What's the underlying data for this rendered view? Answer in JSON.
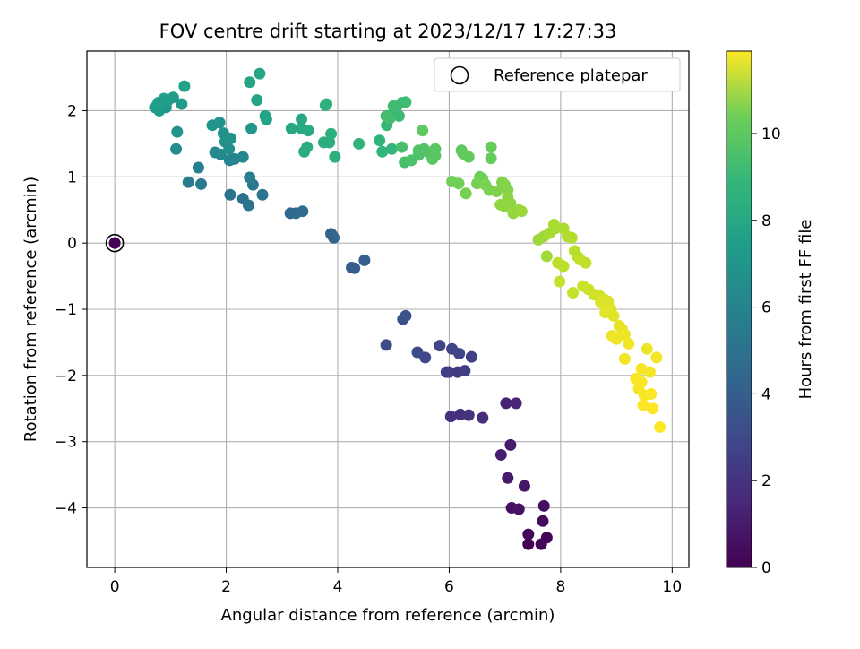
{
  "chart_data": {
    "type": "scatter",
    "title": "FOV centre drift starting at 2023/12/17 17:27:33",
    "xlabel": "Angular distance from reference (arcmin)",
    "ylabel": "Rotation from reference (arcmin)",
    "xlim": [
      -0.5,
      10.3
    ],
    "ylim": [
      -4.9,
      2.9
    ],
    "xticks": [
      0,
      2,
      4,
      6,
      8,
      10
    ],
    "xtick_labels": [
      "0",
      "2",
      "4",
      "6",
      "8",
      "10"
    ],
    "yticks": [
      -4,
      -3,
      -2,
      -1,
      0,
      1,
      2
    ],
    "ytick_labels": [
      "−4",
      "−3",
      "−2",
      "−1",
      "0",
      "1",
      "2"
    ],
    "grid": true,
    "legend": {
      "position": "top-right",
      "entries": [
        "Reference platepar"
      ]
    },
    "reference_point": {
      "x": 0,
      "y": 0
    },
    "colorbar": {
      "label": "Hours from first FF file",
      "range": [
        0,
        11.9
      ],
      "ticks": [
        0,
        2,
        4,
        6,
        8,
        10
      ],
      "tick_labels": [
        "0",
        "2",
        "4",
        "6",
        "8",
        "10"
      ],
      "colormap": "viridis"
    },
    "points": [
      [
        7.42,
        -4.55,
        0.05
      ],
      [
        7.65,
        -4.55,
        0.1
      ],
      [
        7.75,
        -4.45,
        0.15
      ],
      [
        7.42,
        -4.4,
        0.2
      ],
      [
        7.68,
        -4.2,
        0.3
      ],
      [
        7.7,
        -3.97,
        0.4
      ],
      [
        7.12,
        -4.0,
        0.5
      ],
      [
        7.25,
        -4.02,
        0.6
      ],
      [
        7.35,
        -3.67,
        0.7
      ],
      [
        7.05,
        -3.55,
        0.8
      ],
      [
        7.1,
        -3.05,
        0.9
      ],
      [
        6.93,
        -3.2,
        1.0
      ],
      [
        7.02,
        -2.42,
        1.2
      ],
      [
        7.2,
        -2.42,
        1.3
      ],
      [
        6.6,
        -2.64,
        1.5
      ],
      [
        6.2,
        -2.59,
        1.6
      ],
      [
        6.03,
        -2.62,
        1.7
      ],
      [
        6.35,
        -2.6,
        1.8
      ],
      [
        6.0,
        -1.95,
        2.0
      ],
      [
        6.15,
        -1.95,
        2.1
      ],
      [
        6.28,
        -1.93,
        2.2
      ],
      [
        5.95,
        -1.95,
        2.2
      ],
      [
        6.4,
        -1.72,
        2.3
      ],
      [
        6.05,
        -1.6,
        2.4
      ],
      [
        5.83,
        -1.55,
        2.5
      ],
      [
        6.18,
        -1.67,
        2.5
      ],
      [
        5.57,
        -1.73,
        2.6
      ],
      [
        5.43,
        -1.65,
        2.7
      ],
      [
        4.87,
        -1.54,
        2.8
      ],
      [
        5.17,
        -1.15,
        3.0
      ],
      [
        5.22,
        -1.1,
        3.0
      ],
      [
        4.25,
        -0.37,
        3.4
      ],
      [
        4.3,
        -0.38,
        3.5
      ],
      [
        4.48,
        -0.26,
        3.6
      ],
      [
        3.88,
        0.14,
        3.8
      ],
      [
        3.93,
        0.08,
        3.9
      ],
      [
        3.9,
        0.12,
        3.9
      ],
      [
        3.15,
        0.45,
        4.0
      ],
      [
        3.25,
        0.45,
        4.1
      ],
      [
        3.37,
        0.48,
        4.2
      ],
      [
        2.3,
        0.67,
        4.4
      ],
      [
        2.4,
        0.57,
        4.5
      ],
      [
        2.07,
        0.73,
        4.6
      ],
      [
        2.65,
        0.73,
        4.7
      ],
      [
        2.48,
        0.88,
        4.8
      ],
      [
        1.55,
        0.89,
        4.9
      ],
      [
        1.32,
        0.92,
        5.0
      ],
      [
        2.42,
        0.99,
        5.1
      ],
      [
        1.5,
        1.14,
        5.2
      ],
      [
        2.15,
        1.27,
        5.3
      ],
      [
        2.06,
        1.25,
        5.4
      ],
      [
        2.3,
        1.3,
        5.5
      ],
      [
        1.9,
        1.34,
        5.6
      ],
      [
        1.8,
        1.37,
        5.7
      ],
      [
        1.1,
        1.42,
        5.8
      ],
      [
        2.05,
        1.42,
        5.9
      ],
      [
        1.98,
        1.53,
        6.0
      ],
      [
        2.08,
        1.58,
        6.0
      ],
      [
        1.95,
        1.66,
        6.1
      ],
      [
        1.12,
        1.68,
        6.1
      ],
      [
        1.75,
        1.78,
        6.2
      ],
      [
        1.88,
        1.82,
        6.2
      ],
      [
        2.45,
        1.73,
        6.3
      ],
      [
        0.92,
        2.05,
        6.3
      ],
      [
        1.2,
        2.1,
        6.4
      ],
      [
        0.8,
        2.0,
        6.4
      ],
      [
        0.72,
        2.05,
        6.5
      ],
      [
        0.82,
        2.12,
        6.5
      ],
      [
        0.95,
        2.15,
        6.6
      ],
      [
        1.05,
        2.2,
        6.6
      ],
      [
        0.88,
        2.18,
        6.7
      ],
      [
        0.78,
        2.12,
        6.7
      ],
      [
        1.25,
        2.37,
        6.8
      ],
      [
        2.7,
        1.92,
        6.8
      ],
      [
        2.72,
        1.87,
        6.9
      ],
      [
        2.55,
        2.16,
        6.9
      ],
      [
        2.42,
        2.43,
        7.0
      ],
      [
        2.6,
        2.56,
        7.0
      ],
      [
        3.17,
        1.73,
        7.1
      ],
      [
        3.35,
        1.87,
        7.1
      ],
      [
        3.35,
        1.73,
        7.2
      ],
      [
        3.47,
        1.7,
        7.2
      ],
      [
        3.4,
        1.38,
        7.3
      ],
      [
        3.45,
        1.45,
        7.3
      ],
      [
        3.75,
        1.52,
        7.4
      ],
      [
        3.85,
        1.52,
        7.4
      ],
      [
        3.88,
        1.65,
        7.5
      ],
      [
        3.95,
        1.3,
        7.5
      ],
      [
        3.78,
        2.08,
        7.6
      ],
      [
        3.8,
        2.1,
        7.6
      ],
      [
        4.38,
        1.5,
        7.7
      ],
      [
        4.75,
        1.55,
        7.7
      ],
      [
        4.8,
        1.38,
        7.8
      ],
      [
        4.97,
        1.42,
        7.8
      ],
      [
        4.88,
        1.78,
        7.9
      ],
      [
        4.92,
        1.92,
        7.9
      ],
      [
        5.0,
        1.97,
        8.0
      ],
      [
        5.05,
        2.05,
        8.0
      ],
      [
        5.1,
        1.92,
        8.1
      ],
      [
        5.15,
        2.12,
        8.1
      ],
      [
        5.0,
        2.07,
        8.2
      ],
      [
        5.22,
        2.13,
        8.2
      ],
      [
        4.93,
        1.88,
        8.3
      ],
      [
        4.87,
        1.92,
        8.3
      ],
      [
        5.15,
        1.45,
        8.4
      ],
      [
        5.2,
        1.22,
        8.4
      ],
      [
        5.32,
        1.25,
        8.5
      ],
      [
        5.45,
        1.33,
        8.5
      ],
      [
        5.45,
        1.4,
        8.6
      ],
      [
        5.55,
        1.42,
        8.6
      ],
      [
        5.65,
        1.35,
        8.7
      ],
      [
        5.75,
        1.32,
        8.7
      ],
      [
        5.7,
        1.27,
        8.8
      ],
      [
        5.75,
        1.42,
        8.8
      ],
      [
        5.52,
        1.7,
        8.9
      ],
      [
        6.22,
        1.4,
        8.9
      ],
      [
        6.35,
        1.3,
        9.0
      ],
      [
        6.25,
        1.35,
        9.0
      ],
      [
        6.75,
        1.45,
        9.1
      ],
      [
        6.75,
        1.28,
        9.1
      ],
      [
        6.55,
        1.0,
        9.2
      ],
      [
        6.6,
        0.97,
        9.2
      ],
      [
        6.05,
        0.93,
        9.3
      ],
      [
        6.17,
        0.9,
        9.3
      ],
      [
        6.3,
        0.75,
        9.4
      ],
      [
        6.5,
        0.9,
        9.4
      ],
      [
        6.65,
        0.88,
        9.5
      ],
      [
        6.72,
        0.8,
        9.5
      ],
      [
        6.85,
        0.78,
        9.6
      ],
      [
        6.95,
        0.92,
        9.6
      ],
      [
        7.0,
        0.88,
        9.7
      ],
      [
        7.05,
        0.8,
        9.7
      ],
      [
        7.05,
        0.7,
        9.8
      ],
      [
        7.1,
        0.6,
        9.8
      ],
      [
        6.92,
        0.58,
        9.9
      ],
      [
        7.0,
        0.55,
        9.9
      ],
      [
        7.15,
        0.45,
        10.0
      ],
      [
        7.25,
        0.5,
        10.0
      ],
      [
        7.3,
        0.48,
        10.1
      ],
      [
        7.6,
        0.05,
        10.1
      ],
      [
        7.7,
        0.1,
        10.2
      ],
      [
        7.75,
        -0.2,
        10.2
      ],
      [
        7.8,
        0.15,
        10.3
      ],
      [
        7.9,
        0.22,
        10.3
      ],
      [
        7.88,
        0.28,
        10.4
      ],
      [
        8.05,
        0.22,
        10.4
      ],
      [
        8.12,
        0.1,
        10.5
      ],
      [
        8.2,
        0.08,
        10.5
      ],
      [
        8.25,
        -0.12,
        10.6
      ],
      [
        8.3,
        -0.2,
        10.6
      ],
      [
        7.95,
        -0.3,
        10.7
      ],
      [
        8.05,
        -0.35,
        10.7
      ],
      [
        8.35,
        -0.25,
        10.8
      ],
      [
        8.45,
        -0.3,
        10.8
      ],
      [
        7.98,
        -0.58,
        10.9
      ],
      [
        8.22,
        -0.75,
        10.9
      ],
      [
        8.4,
        -0.65,
        11.0
      ],
      [
        8.5,
        -0.7,
        11.0
      ],
      [
        8.6,
        -0.78,
        11.1
      ],
      [
        8.7,
        -0.8,
        11.1
      ],
      [
        8.78,
        -0.85,
        11.2
      ],
      [
        8.85,
        -0.88,
        11.2
      ],
      [
        8.72,
        -0.9,
        11.3
      ],
      [
        8.9,
        -1.0,
        11.3
      ],
      [
        8.8,
        -1.05,
        11.4
      ],
      [
        8.95,
        -1.1,
        11.4
      ],
      [
        9.05,
        -1.25,
        11.5
      ],
      [
        9.1,
        -1.3,
        11.5
      ],
      [
        8.92,
        -1.4,
        11.6
      ],
      [
        9.0,
        -1.45,
        11.6
      ],
      [
        9.15,
        -1.38,
        11.6
      ],
      [
        9.22,
        -1.52,
        11.7
      ],
      [
        9.15,
        -1.75,
        11.7
      ],
      [
        9.35,
        -2.05,
        11.8
      ],
      [
        9.45,
        -2.1,
        11.8
      ],
      [
        9.5,
        -2.3,
        11.8
      ],
      [
        9.62,
        -2.28,
        11.85
      ],
      [
        9.48,
        -2.45,
        11.9
      ],
      [
        9.65,
        -2.5,
        11.9
      ],
      [
        9.78,
        -2.78,
        11.9
      ],
      [
        9.6,
        -1.95,
        11.7
      ],
      [
        9.55,
        -1.6,
        11.6
      ],
      [
        9.72,
        -1.73,
        11.7
      ],
      [
        9.45,
        -1.9,
        11.75
      ],
      [
        9.4,
        -2.2,
        11.8
      ]
    ]
  }
}
